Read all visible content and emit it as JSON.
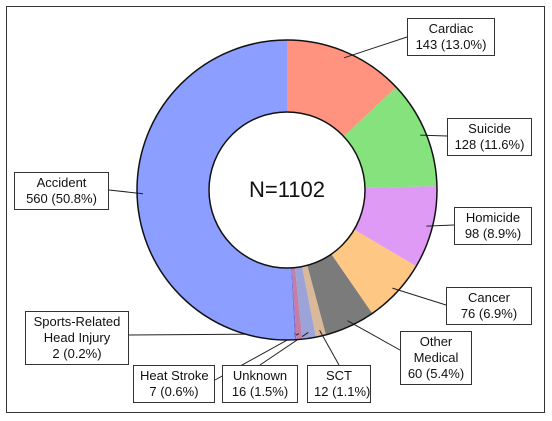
{
  "chart_data": {
    "type": "pie",
    "donut": true,
    "center_text": "N=1102",
    "slices": [
      {
        "name": "Cardiac",
        "value": 143,
        "label_line1": "Cardiac",
        "label_line2": "143 (13.0%)",
        "color": "#FF9380"
      },
      {
        "name": "Suicide",
        "value": 128,
        "label_line1": "Suicide",
        "label_line2": "128 (11.6%)",
        "color": "#86E27C"
      },
      {
        "name": "Homicide",
        "value": 98,
        "label_line1": "Homicide",
        "label_line2": "98 (8.9%)",
        "color": "#DE9AF5"
      },
      {
        "name": "Cancer",
        "value": 76,
        "label_line1": "Cancer",
        "label_line2": "76 (6.9%)",
        "color": "#FFC784"
      },
      {
        "name": "Other Medical",
        "value": 60,
        "label_line1": "Other",
        "label_line1b": "Medical",
        "label_line2": "60 (5.4%)",
        "color": "#7B7B7B"
      },
      {
        "name": "SCT",
        "value": 12,
        "label_line1": "SCT",
        "label_line2": "12 (1.1%)",
        "color": "#D9B99A"
      },
      {
        "name": "Unknown",
        "value": 16,
        "label_line1": "Unknown",
        "label_line2": "16 (1.5%)",
        "color": "#9BA3D8"
      },
      {
        "name": "Heat Stroke",
        "value": 7,
        "label_line1": "Heat Stroke",
        "label_line2": "7 (0.6%)",
        "color": "#C47FA6"
      },
      {
        "name": "Sports-Related Head Injury",
        "value": 2,
        "label_line1": "Sports-Related",
        "label_line1b": "Head Injury",
        "label_line2": "2 (0.2%)",
        "color": "#7E6FD0"
      },
      {
        "name": "Accident",
        "value": 560,
        "label_line1": "Accident",
        "label_line2": "560 (50.8%)",
        "color": "#8C9EFF"
      }
    ]
  }
}
